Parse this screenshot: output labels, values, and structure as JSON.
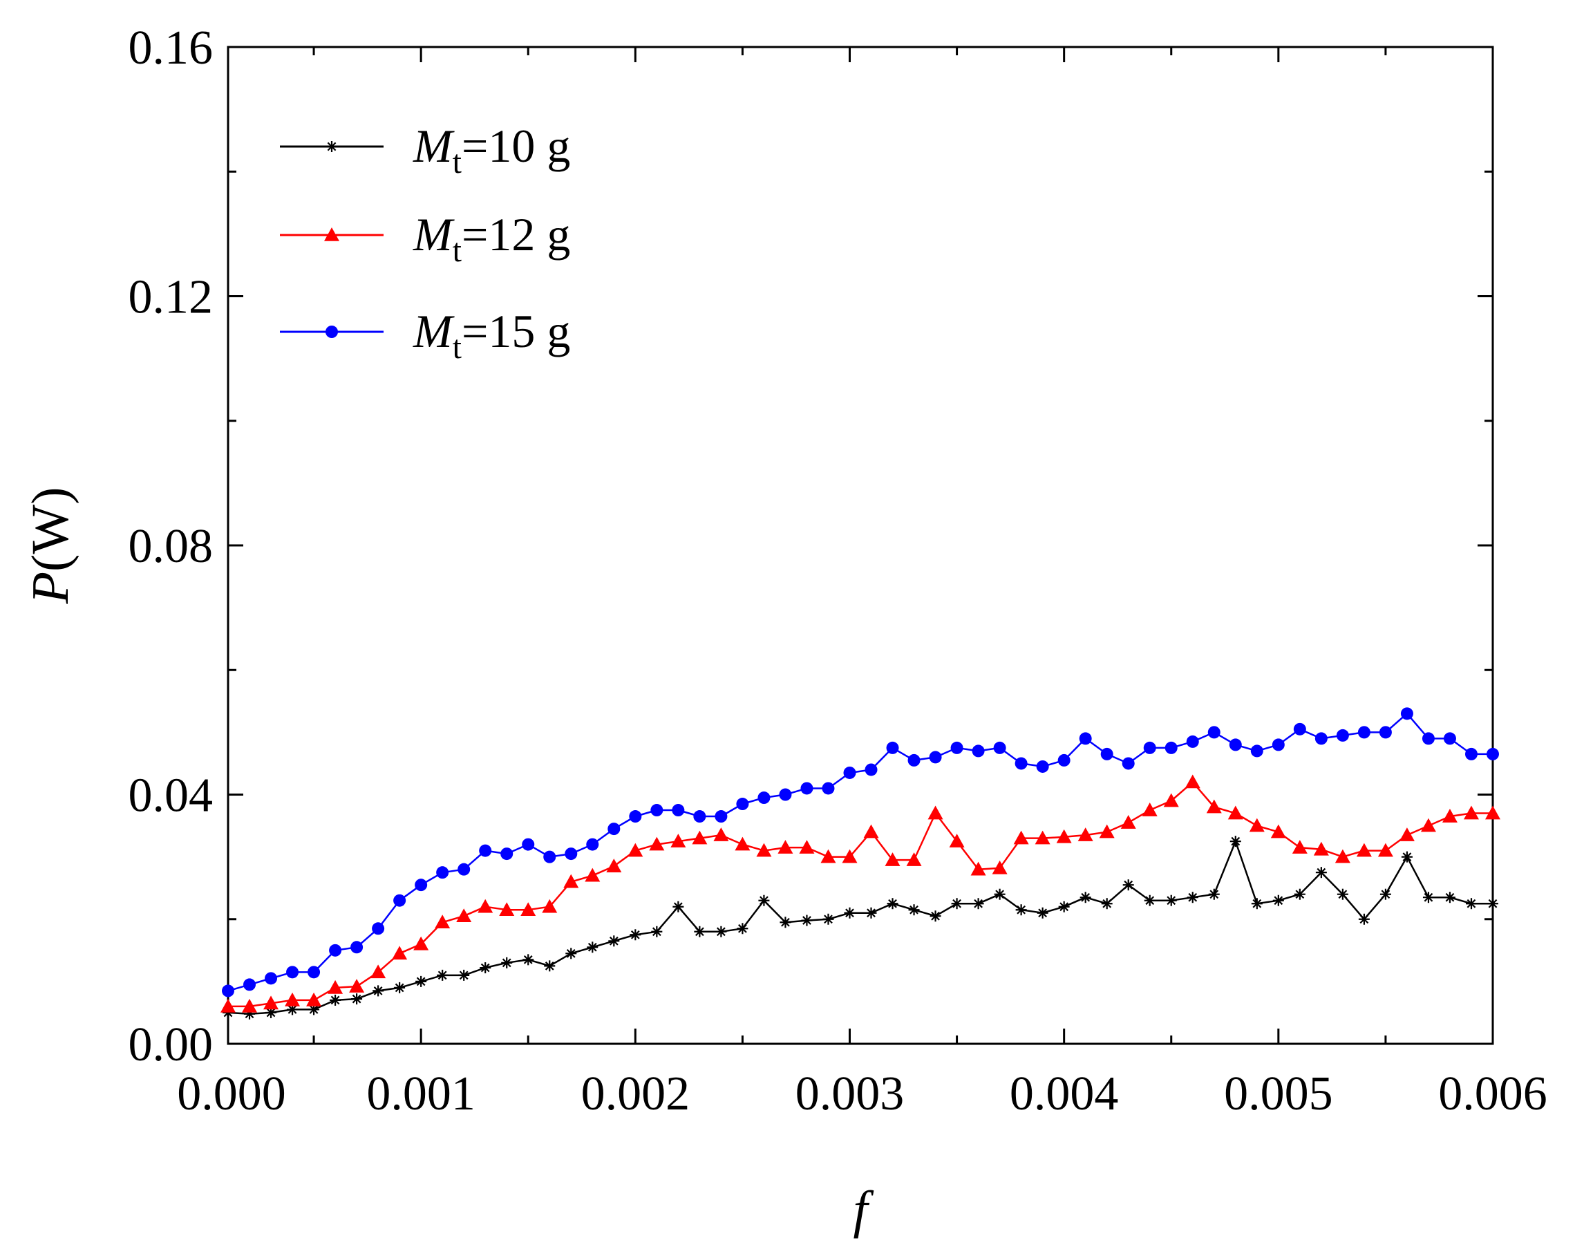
{
  "chart_data": {
    "type": "line",
    "title": "",
    "xlabel": "f",
    "ylabel": {
      "symbol": "P",
      "unit": "(W)"
    },
    "xlim": [
      0.0001,
      0.006
    ],
    "ylim": [
      0.0,
      0.16
    ],
    "xticks": [
      0.0,
      0.001,
      0.002,
      0.003,
      0.004,
      0.005,
      0.006
    ],
    "xtick_labels": [
      "0.000",
      "0.001",
      "0.002",
      "0.003",
      "0.004",
      "0.005",
      "0.006"
    ],
    "yticks": [
      0.0,
      0.04,
      0.08,
      0.12,
      0.16
    ],
    "ytick_labels": [
      "0.00",
      "0.04",
      "0.08",
      "0.12",
      "0.16"
    ],
    "legend_position": "top-left",
    "x": [
      0.0001,
      0.0002,
      0.0003,
      0.0004,
      0.0005,
      0.0006,
      0.0007,
      0.0008,
      0.0009,
      0.001,
      0.0011,
      0.0012,
      0.0013,
      0.0014,
      0.0015,
      0.0016,
      0.0017,
      0.0018,
      0.0019,
      0.002,
      0.0021,
      0.0022,
      0.0023,
      0.0024,
      0.0025,
      0.0026,
      0.0027,
      0.0028,
      0.0029,
      0.003,
      0.0031,
      0.0032,
      0.0033,
      0.0034,
      0.0035,
      0.0036,
      0.0037,
      0.0038,
      0.0039,
      0.004,
      0.0041,
      0.0042,
      0.0043,
      0.0044,
      0.0045,
      0.0046,
      0.0047,
      0.0048,
      0.0049,
      0.005,
      0.0051,
      0.0052,
      0.0053,
      0.0054,
      0.0055,
      0.0056,
      0.0057,
      0.0058,
      0.0059,
      0.006
    ],
    "series": [
      {
        "name": "M_t=10 g",
        "label_main": "M",
        "label_sub": "t",
        "label_rest": "=10 g",
        "color": "#000000",
        "marker": "star",
        "values": [
          0.005,
          0.0048,
          0.005,
          0.0055,
          0.0055,
          0.007,
          0.0072,
          0.0085,
          0.009,
          0.01,
          0.011,
          0.011,
          0.0122,
          0.013,
          0.0135,
          0.0125,
          0.0145,
          0.0155,
          0.0165,
          0.0175,
          0.018,
          0.022,
          0.018,
          0.018,
          0.0185,
          0.023,
          0.0195,
          0.0198,
          0.02,
          0.021,
          0.021,
          0.0225,
          0.0215,
          0.0205,
          0.0225,
          0.0225,
          0.024,
          0.0215,
          0.021,
          0.022,
          0.0235,
          0.0225,
          0.0255,
          0.023,
          0.023,
          0.0235,
          0.024,
          0.0325,
          0.0225,
          0.023,
          0.024,
          0.0275,
          0.024,
          0.02,
          0.024,
          0.03,
          0.0235,
          0.0235,
          0.0225,
          0.0225
        ]
      },
      {
        "name": "M_t=12 g",
        "label_main": "M",
        "label_sub": "t",
        "label_rest": "=12 g",
        "color": "#ff0000",
        "marker": "triangle",
        "values": [
          0.006,
          0.006,
          0.0065,
          0.007,
          0.007,
          0.009,
          0.0092,
          0.0115,
          0.0145,
          0.016,
          0.0195,
          0.0205,
          0.022,
          0.0215,
          0.0215,
          0.022,
          0.026,
          0.027,
          0.0285,
          0.031,
          0.032,
          0.0325,
          0.033,
          0.0335,
          0.032,
          0.031,
          0.0315,
          0.0315,
          0.03,
          0.03,
          0.034,
          0.0295,
          0.0295,
          0.037,
          0.0325,
          0.028,
          0.0282,
          0.033,
          0.033,
          0.0332,
          0.0335,
          0.034,
          0.0355,
          0.0375,
          0.039,
          0.042,
          0.038,
          0.037,
          0.035,
          0.034,
          0.0315,
          0.0312,
          0.03,
          0.031,
          0.031,
          0.0335,
          0.035,
          0.0365,
          0.037,
          0.037
        ]
      },
      {
        "name": "M_t=15 g",
        "label_main": "M",
        "label_sub": "t",
        "label_rest": "=15 g",
        "color": "#0000ff",
        "marker": "circle",
        "values": [
          0.0085,
          0.0095,
          0.0105,
          0.0115,
          0.0115,
          0.015,
          0.0155,
          0.0185,
          0.023,
          0.0255,
          0.0275,
          0.028,
          0.031,
          0.0305,
          0.032,
          0.03,
          0.0305,
          0.032,
          0.0345,
          0.0365,
          0.0375,
          0.0375,
          0.0365,
          0.0365,
          0.0385,
          0.0395,
          0.04,
          0.041,
          0.041,
          0.0435,
          0.044,
          0.0475,
          0.0455,
          0.046,
          0.0475,
          0.047,
          0.0475,
          0.045,
          0.0445,
          0.0455,
          0.049,
          0.0465,
          0.045,
          0.0475,
          0.0475,
          0.0485,
          0.05,
          0.048,
          0.047,
          0.048,
          0.0505,
          0.049,
          0.0495,
          0.05,
          0.05,
          0.053,
          0.049,
          0.049,
          0.0465,
          0.0465
        ]
      }
    ]
  }
}
